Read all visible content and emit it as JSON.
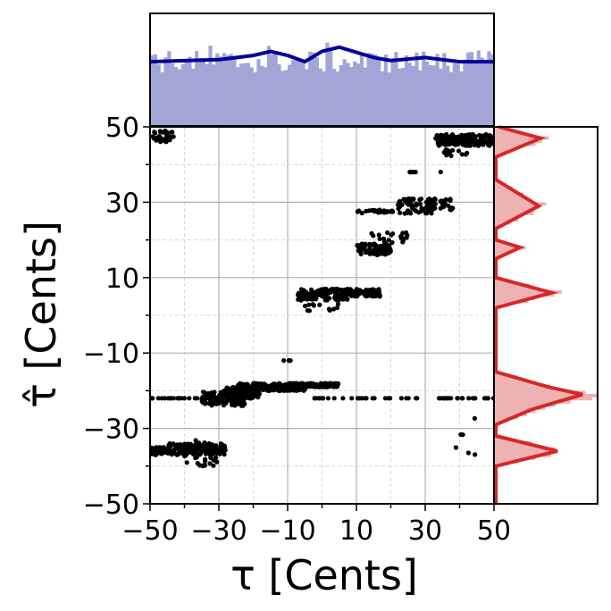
{
  "chart_data": {
    "type": "scatter",
    "xlabel": "τ [Cents]",
    "ylabel": "τ̂ [Cents]",
    "xlim": [
      -50,
      50
    ],
    "ylim": [
      -50,
      50
    ],
    "grid": true,
    "x_ticks": [
      -50,
      -30,
      -10,
      10,
      30,
      50
    ],
    "x_tick_labels": [
      "−50",
      "−30",
      "−10",
      "10",
      "30",
      "50"
    ],
    "y_ticks": [
      -50,
      -30,
      -10,
      10,
      30,
      50
    ],
    "y_tick_labels": [
      "−50",
      "−30",
      "−10",
      "10",
      "30",
      "50"
    ],
    "clusters": [
      {
        "x": [
          -50,
          -43
        ],
        "y": [
          46,
          49
        ],
        "n": 35
      },
      {
        "x": [
          -50,
          -45
        ],
        "y": [
          -37,
          -35
        ],
        "n": 60
      },
      {
        "x": [
          -45,
          -28
        ],
        "y": [
          -37,
          -34
        ],
        "n": 140
      },
      {
        "x": [
          -40,
          -30
        ],
        "y": [
          -40,
          -33
        ],
        "n": 30
      },
      {
        "x": [
          -35,
          -22
        ],
        "y": [
          -24,
          -20
        ],
        "n": 120
      },
      {
        "x": [
          -28,
          -18
        ],
        "y": [
          -22,
          -19
        ],
        "n": 150
      },
      {
        "x": [
          -25,
          -5
        ],
        "y": [
          -20,
          -18
        ],
        "n": 220
      },
      {
        "x": [
          -10,
          5
        ],
        "y": [
          -19,
          -18
        ],
        "n": 140
      },
      {
        "x": [
          -50,
          -20
        ],
        "y": [
          -22,
          -22
        ],
        "n": 45
      },
      {
        "x": [
          -3,
          28
        ],
        "y": [
          -22,
          -22
        ],
        "n": 25
      },
      {
        "x": [
          34,
          50
        ],
        "y": [
          -22,
          -22
        ],
        "n": 22
      },
      {
        "x": [
          -7,
          8
        ],
        "y": [
          4,
          7
        ],
        "n": 110
      },
      {
        "x": [
          6,
          17
        ],
        "y": [
          5,
          7
        ],
        "n": 70
      },
      {
        "x": [
          -5,
          5
        ],
        "y": [
          1,
          3
        ],
        "n": 12
      },
      {
        "x": [
          10,
          20
        ],
        "y": [
          16,
          19
        ],
        "n": 95
      },
      {
        "x": [
          14,
          25
        ],
        "y": [
          19,
          22
        ],
        "n": 20
      },
      {
        "x": [
          10,
          32
        ],
        "y": [
          27,
          28
        ],
        "n": 45
      },
      {
        "x": [
          22,
          38
        ],
        "y": [
          28,
          31
        ],
        "n": 80
      },
      {
        "x": [
          33,
          50
        ],
        "y": [
          45,
          48
        ],
        "n": 150
      },
      {
        "x": [
          35,
          43
        ],
        "y": [
          42,
          44
        ],
        "n": 15
      },
      {
        "x": [
          -12,
          -7
        ],
        "y": [
          -12,
          -12
        ],
        "n": 4
      },
      {
        "x": [
          25,
          35
        ],
        "y": [
          38,
          38
        ],
        "n": 5
      },
      {
        "x": [
          36,
          50
        ],
        "y": [
          -37,
          -26
        ],
        "n": 6
      }
    ],
    "marginal_x": {
      "kde": [
        [
          -50,
          0.62
        ],
        [
          -40,
          0.63
        ],
        [
          -30,
          0.64
        ],
        [
          -20,
          0.68
        ],
        [
          -15,
          0.72
        ],
        [
          -10,
          0.68
        ],
        [
          -5,
          0.62
        ],
        [
          0,
          0.72
        ],
        [
          5,
          0.76
        ],
        [
          10,
          0.71
        ],
        [
          15,
          0.66
        ],
        [
          20,
          0.63
        ],
        [
          30,
          0.66
        ],
        [
          35,
          0.64
        ],
        [
          40,
          0.62
        ],
        [
          50,
          0.62
        ]
      ],
      "color": "#000099",
      "bar_color": "#a3a5d6"
    },
    "marginal_y": {
      "kde": [
        [
          50,
          0.05
        ],
        [
          47,
          0.5
        ],
        [
          42,
          0.02
        ],
        [
          36,
          0.02
        ],
        [
          29,
          0.48
        ],
        [
          23,
          0.02
        ],
        [
          20,
          0.02
        ],
        [
          18,
          0.28
        ],
        [
          15,
          0.02
        ],
        [
          10,
          0.02
        ],
        [
          6,
          0.62
        ],
        [
          2,
          0.02
        ],
        [
          -5,
          0.02
        ],
        [
          -15,
          0.02
        ],
        [
          -19,
          0.58
        ],
        [
          -21,
          0.95
        ],
        [
          -25,
          0.4
        ],
        [
          -29,
          0.02
        ],
        [
          -32,
          0.02
        ],
        [
          -36,
          0.68
        ],
        [
          -40,
          0.02
        ],
        [
          -50,
          0.02
        ]
      ],
      "color": "#d62728",
      "bar_color": "#efb2b2"
    }
  }
}
